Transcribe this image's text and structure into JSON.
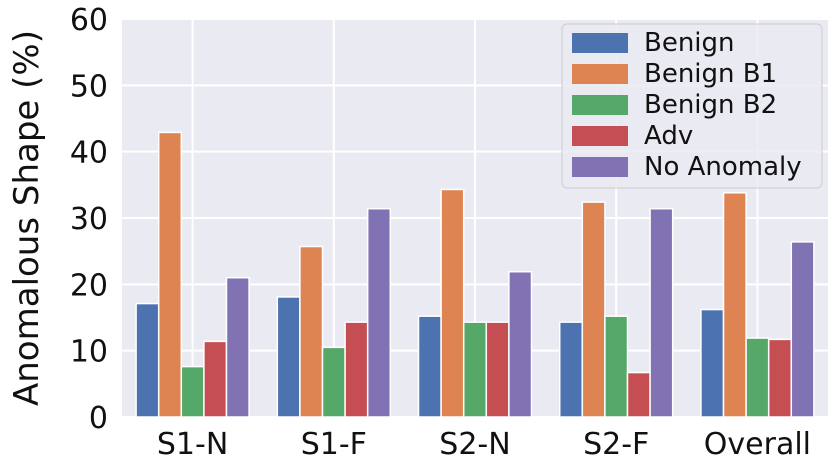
{
  "chart_data": {
    "type": "bar",
    "title": "",
    "xlabel": "",
    "ylabel": "Anomalous Shape (%)",
    "ylim": [
      0,
      60
    ],
    "yticks": [
      "0",
      "10",
      "20",
      "30",
      "40",
      "50",
      "60"
    ],
    "categories": [
      "S1-N",
      "S1-F",
      "S2-N",
      "S2-F",
      "Overall"
    ],
    "series": [
      {
        "name": "Benign",
        "color": "#4c72b0",
        "values": [
          17.1,
          18.1,
          15.2,
          14.3,
          16.2
        ]
      },
      {
        "name": "Benign B1",
        "color": "#dd8452",
        "values": [
          42.9,
          25.7,
          34.3,
          32.4,
          33.8
        ]
      },
      {
        "name": "Benign B2",
        "color": "#55a868",
        "values": [
          7.6,
          10.5,
          14.3,
          15.2,
          11.9
        ]
      },
      {
        "name": "Adv",
        "color": "#c44e52",
        "values": [
          11.4,
          14.3,
          14.3,
          6.7,
          11.7
        ]
      },
      {
        "name": "No Anomaly",
        "color": "#8172b3",
        "values": [
          21.0,
          31.4,
          21.9,
          31.4,
          26.4
        ]
      }
    ],
    "grid": true,
    "background": "#eaeaf2",
    "legend_position": "top-right"
  }
}
